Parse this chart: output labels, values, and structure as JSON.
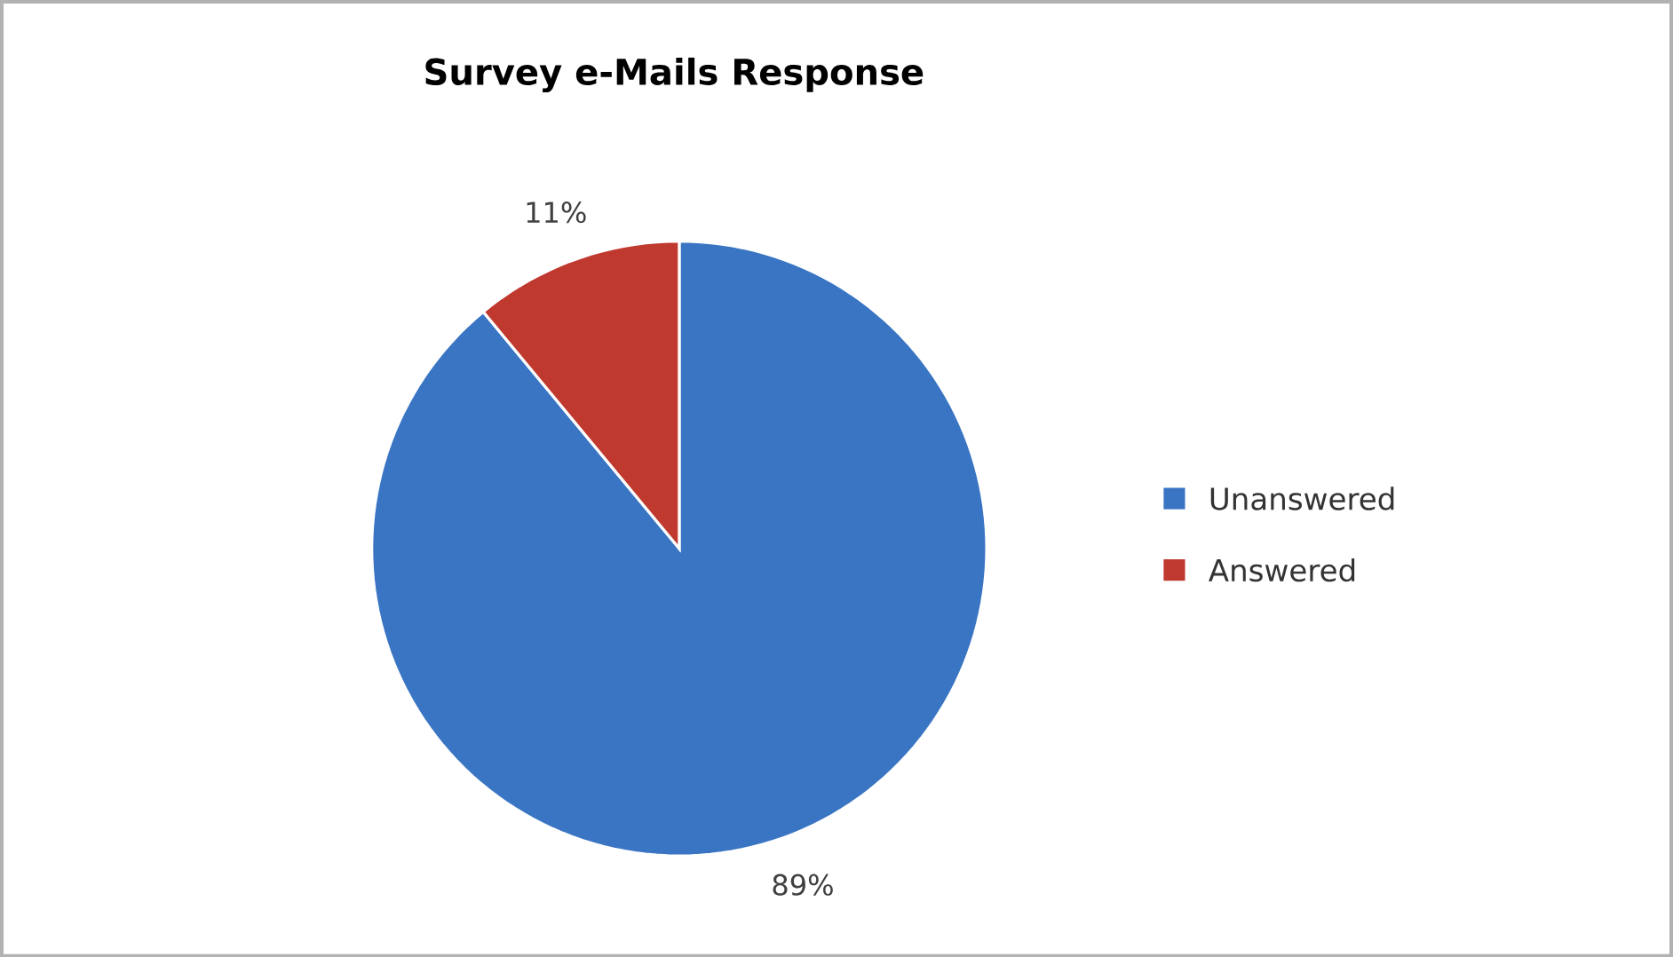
{
  "chart_data": {
    "type": "pie",
    "title": "Survey e-Mails Response",
    "categories": [
      "Unanswered",
      "Answered"
    ],
    "values": [
      89,
      11
    ],
    "colors": [
      "#3a75c4",
      "#c0392f"
    ],
    "value_labels": [
      "89%",
      "11%"
    ],
    "legend": "right"
  }
}
